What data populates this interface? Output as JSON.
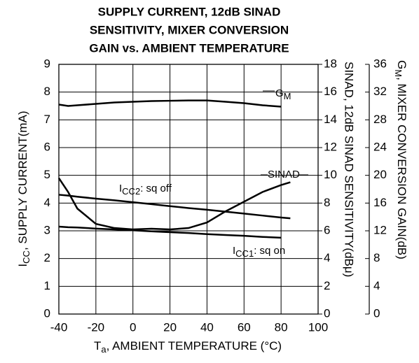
{
  "chart_data": {
    "type": "line",
    "title": [
      "SUPPLY CURRENT, 12dB SINAD",
      "SENSITIVITY, MIXER CONVERSION",
      "GAIN vs. AMBIENT TEMPERATURE"
    ],
    "x_label_parts": [
      "T",
      "a",
      ", AMBIENT TEMPERATURE (°C)"
    ],
    "y_label_parts": [
      "I",
      "CC",
      ", SUPPLY CURRENT(mA)"
    ],
    "y2_label": "SINAD, 12dB SINAD SENSITIVITY(dBμ)",
    "y3_label_parts": [
      "G",
      "M",
      ", MIXER CONVERSION GAIN(dB)"
    ],
    "x": [
      -40,
      -35,
      -30,
      -20,
      -10,
      0,
      10,
      20,
      30,
      40,
      50,
      60,
      70,
      80,
      85
    ],
    "xlim": [
      -40,
      100
    ],
    "xticks": [
      -40,
      -20,
      0,
      20,
      40,
      60,
      80,
      100
    ],
    "ylim": [
      0,
      9
    ],
    "yticks": [
      0,
      1,
      2,
      3,
      4,
      5,
      6,
      7,
      8,
      9
    ],
    "y2lim": [
      0,
      18
    ],
    "y2ticks": [
      0,
      2,
      4,
      6,
      8,
      10,
      12,
      14,
      16,
      18
    ],
    "y3lim": [
      0,
      36
    ],
    "y3ticks": [
      0,
      4,
      8,
      12,
      16,
      20,
      24,
      28,
      32,
      36
    ],
    "grid": true,
    "series": [
      {
        "name_parts": [
          "G",
          "M",
          ""
        ],
        "color": "#000000",
        "axis": "y3",
        "values": [
          30.2,
          30.0,
          30.1,
          30.3,
          30.5,
          30.6,
          30.7,
          30.75,
          30.8,
          30.8,
          30.6,
          30.4,
          30.1,
          29.9,
          null
        ]
      },
      {
        "name_parts": [
          "SINAD",
          "",
          ""
        ],
        "color": "#000000",
        "axis": "y2",
        "values": [
          9.8,
          8.8,
          7.6,
          6.5,
          6.2,
          6.1,
          6.15,
          6.1,
          6.2,
          6.6,
          7.4,
          8.1,
          8.8,
          9.3,
          9.5
        ]
      },
      {
        "name_parts": [
          "I",
          "CC2",
          ": sq off"
        ],
        "color": "#000000",
        "axis": "y",
        "values": [
          4.3,
          4.27,
          4.23,
          4.16,
          4.1,
          4.03,
          3.96,
          3.89,
          3.82,
          3.76,
          3.69,
          3.62,
          3.55,
          3.48,
          3.45
        ]
      },
      {
        "name_parts": [
          "I",
          "CC1",
          ": sq on"
        ],
        "color": "#000000",
        "axis": "y",
        "values": [
          3.15,
          3.13,
          3.12,
          3.08,
          3.05,
          3.02,
          2.98,
          2.95,
          2.92,
          2.88,
          2.85,
          2.82,
          2.78,
          2.75,
          null
        ]
      }
    ]
  }
}
